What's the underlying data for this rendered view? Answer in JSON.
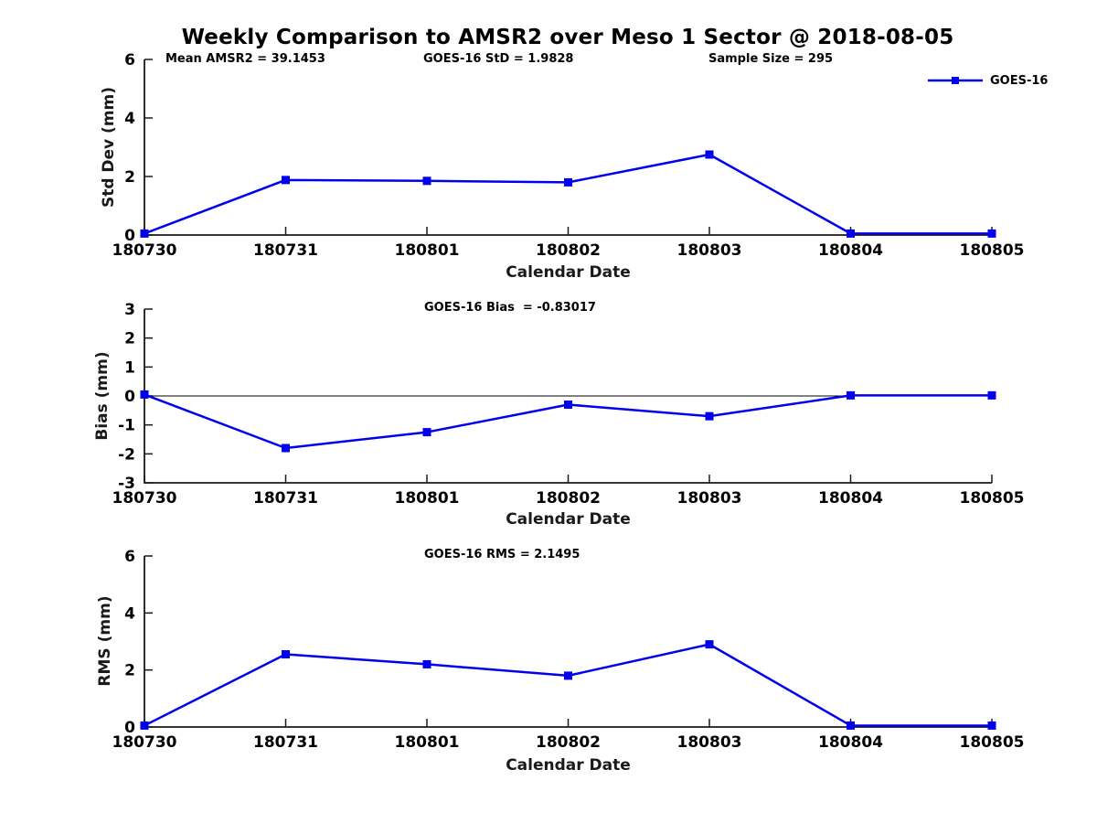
{
  "page": {
    "title": "Weekly Comparison to AMSR2 over Meso 1 Sector @ 2018-08-05"
  },
  "legend": {
    "label": "GOES-16",
    "position": "top-right-outside"
  },
  "colors": {
    "series": "#0000ee",
    "axis": "#1a1a1a",
    "zero_line": "#000000",
    "text": "#000000",
    "background": "#ffffff"
  },
  "chart_data": [
    {
      "type": "line",
      "name": "std-dev",
      "annotations": [
        "Mean AMSR2 = 39.1453",
        "GOES-16 StD = 1.9828",
        "Sample Size = 295"
      ],
      "categories": [
        "180730",
        "180731",
        "180801",
        "180802",
        "180803",
        "180804",
        "180805"
      ],
      "series": [
        {
          "name": "GOES-16",
          "values": [
            0.05,
            1.88,
            1.85,
            1.8,
            2.75,
            0.05,
            0.05
          ]
        }
      ],
      "xlabel": "Calendar Date",
      "ylabel": "Std Dev (mm)",
      "ylim": [
        0,
        6
      ],
      "yticks": [
        0,
        2,
        4,
        6
      ],
      "grid": false,
      "zero_line": false,
      "marker": "square"
    },
    {
      "type": "line",
      "name": "bias",
      "annotations": [
        "GOES-16 Bias  = -0.83017"
      ],
      "categories": [
        "180730",
        "180731",
        "180801",
        "180802",
        "180803",
        "180804",
        "180805"
      ],
      "series": [
        {
          "name": "GOES-16",
          "values": [
            0.05,
            -1.8,
            -1.25,
            -0.3,
            -0.7,
            0.02,
            0.02
          ]
        }
      ],
      "xlabel": "Calendar Date",
      "ylabel": "Bias (mm)",
      "ylim": [
        -3,
        3
      ],
      "yticks": [
        -3,
        -2,
        -1,
        0,
        1,
        2,
        3
      ],
      "grid": false,
      "zero_line": true,
      "marker": "square"
    },
    {
      "type": "line",
      "name": "rms",
      "annotations": [
        "GOES-16 RMS = 2.1495"
      ],
      "categories": [
        "180730",
        "180731",
        "180801",
        "180802",
        "180803",
        "180804",
        "180805"
      ],
      "series": [
        {
          "name": "GOES-16",
          "values": [
            0.05,
            2.55,
            2.2,
            1.8,
            2.9,
            0.05,
            0.05
          ]
        }
      ],
      "xlabel": "Calendar Date",
      "ylabel": "RMS (mm)",
      "ylim": [
        0,
        6
      ],
      "yticks": [
        0,
        2,
        4,
        6
      ],
      "grid": false,
      "zero_line": false,
      "marker": "square"
    }
  ]
}
